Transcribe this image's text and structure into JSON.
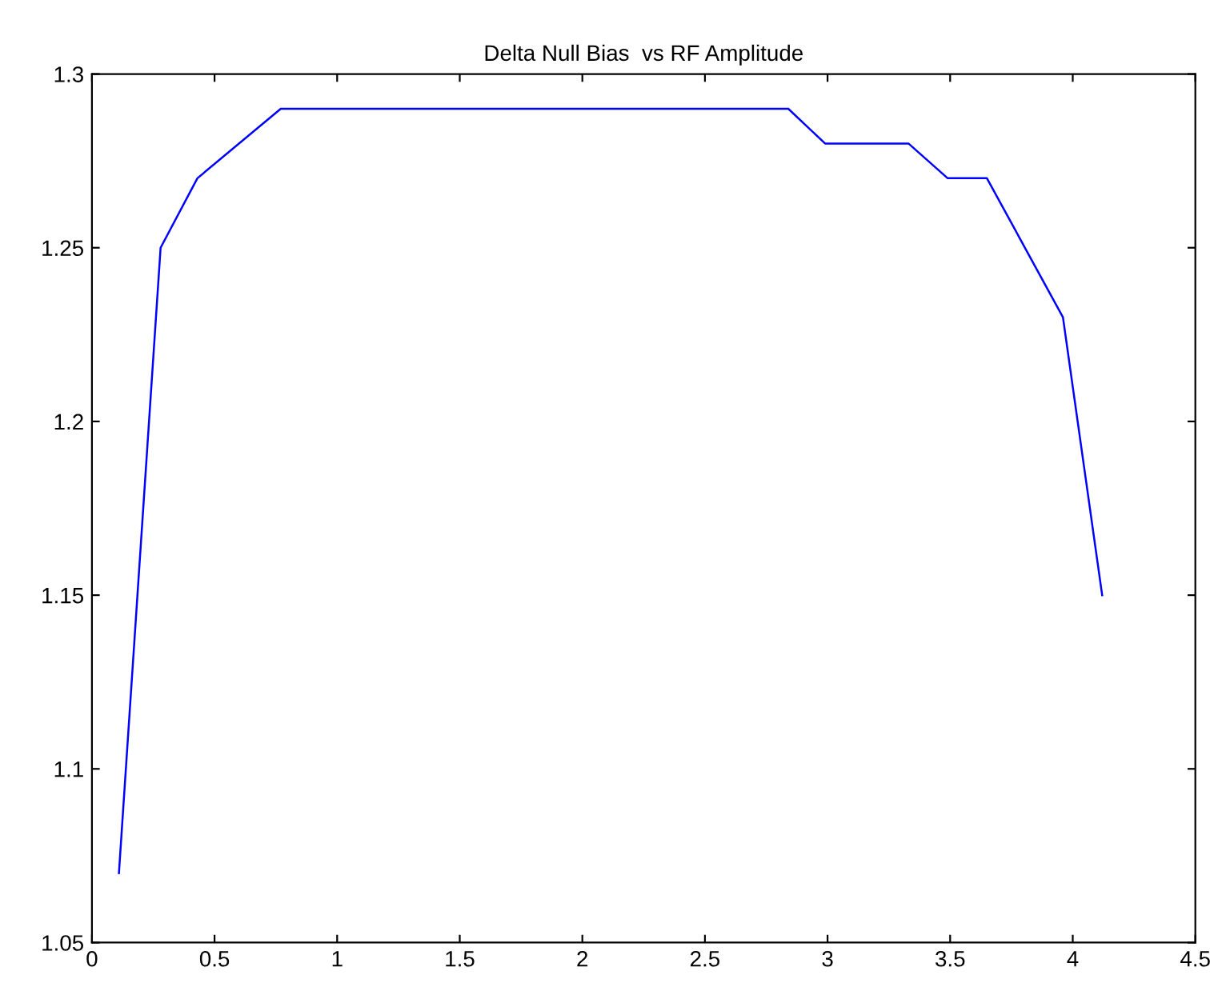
{
  "chart_data": {
    "type": "line",
    "title": "Delta Null Bias  vs RF Amplitude",
    "x": [
      0.11,
      0.28,
      0.43,
      0.77,
      2.84,
      2.99,
      3.33,
      3.49,
      3.65,
      3.96,
      4.12
    ],
    "series": [
      {
        "color": "#0000ff",
        "values": [
          1.07,
          1.25,
          1.27,
          1.29,
          1.29,
          1.28,
          1.28,
          1.27,
          1.27,
          1.23,
          1.15
        ]
      }
    ],
    "xlim": [
      0,
      4.5
    ],
    "xticks": [
      0,
      0.5,
      1,
      1.5,
      2,
      2.5,
      3,
      3.5,
      4,
      4.5
    ],
    "ylim": [
      1.05,
      1.3
    ],
    "yticks": [
      1.05,
      1.1,
      1.15,
      1.2,
      1.25,
      1.3
    ],
    "grid": false,
    "legend": false,
    "marker": "none",
    "line_style": "solid"
  }
}
